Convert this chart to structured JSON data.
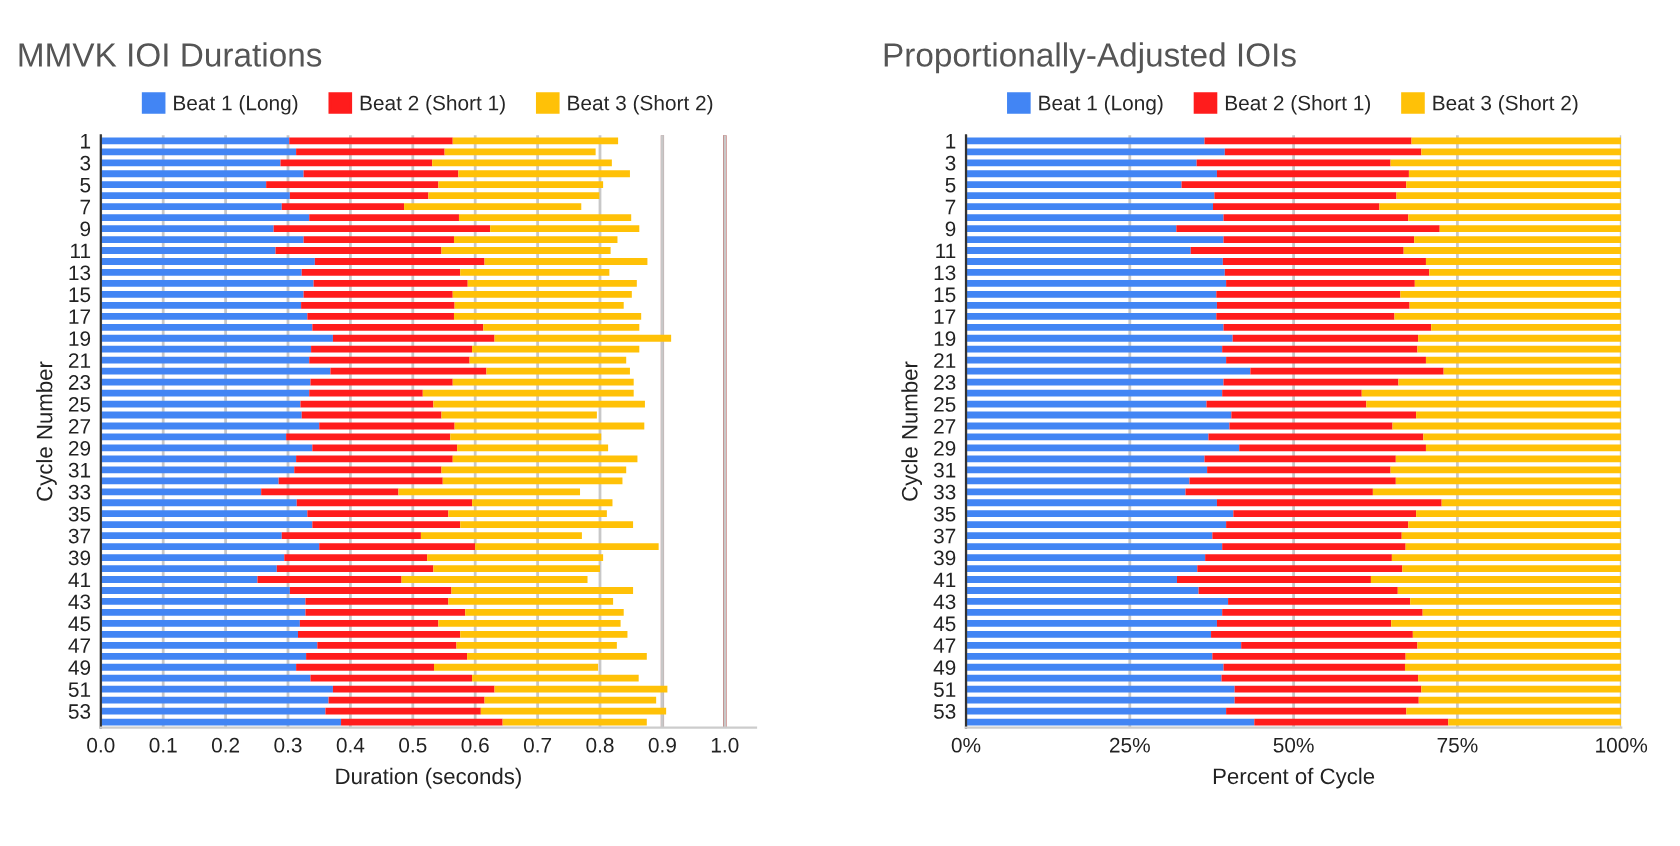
{
  "chart_data": [
    {
      "type": "bar",
      "orientation": "horizontal",
      "stacked": true,
      "title": "MMVK IOI Durations",
      "xlabel": "Duration (seconds)",
      "ylabel": "Cycle Number",
      "legend": "top",
      "grid": "x",
      "categories": [
        "1",
        null,
        "3",
        null,
        "5",
        null,
        "7",
        null,
        "9",
        null,
        "11",
        null,
        "13",
        null,
        "15",
        null,
        "17",
        null,
        "19",
        null,
        "21",
        null,
        "23",
        null,
        "25",
        null,
        "27",
        null,
        "29",
        null,
        "31",
        null,
        "33",
        null,
        "35",
        null,
        "37",
        null,
        "39",
        null,
        "41",
        null,
        "43",
        null,
        "45",
        null,
        "47",
        null,
        "49",
        null,
        "51",
        null,
        "53",
        null
      ],
      "xlim": [
        0,
        1.05
      ],
      "xticks": [
        {
          "value": 0,
          "label": "0.0"
        },
        {
          "value": 0.1,
          "label": "0.1"
        },
        {
          "value": 0.2,
          "label": "0.2"
        },
        {
          "value": 0.3,
          "label": "0.3"
        },
        {
          "value": 0.4,
          "label": "0.4"
        },
        {
          "value": 0.5,
          "label": "0.5"
        },
        {
          "value": 0.6,
          "label": "0.6"
        },
        {
          "value": 0.7,
          "label": "0.7"
        },
        {
          "value": 0.8,
          "label": "0.8"
        },
        {
          "value": 0.9,
          "label": "0.9"
        },
        {
          "value": 1.0,
          "label": "1.0"
        }
      ],
      "ref_lines": [
        {
          "axis": "x",
          "value": 0.9,
          "color": "#b48a8a"
        },
        {
          "axis": "x",
          "value": 1.0,
          "color": "#b3312c"
        }
      ],
      "series": [
        {
          "name": "Beat 1 (Long)",
          "color": "#4285f4",
          "values": [
            0.302,
            0.313,
            0.288,
            0.325,
            0.265,
            0.303,
            0.29,
            0.334,
            0.277,
            0.325,
            0.28,
            0.343,
            0.322,
            0.341,
            0.325,
            0.321,
            0.331,
            0.339,
            0.372,
            0.337,
            0.334,
            0.368,
            0.336,
            0.334,
            0.32,
            0.322,
            0.35,
            0.297,
            0.339,
            0.313,
            0.31,
            0.285,
            0.257,
            0.314,
            0.331,
            0.339,
            0.29,
            0.35,
            0.294,
            0.282,
            0.251,
            0.303,
            0.328,
            0.328,
            0.319,
            0.316,
            0.347,
            0.329,
            0.313,
            0.336,
            0.372,
            0.365,
            0.36,
            0.385
          ]
        },
        {
          "name": "Beat 2 (Short 1)",
          "color": "#ff1c1c",
          "values": [
            0.262,
            0.238,
            0.243,
            0.248,
            0.276,
            0.222,
            0.196,
            0.24,
            0.347,
            0.241,
            0.266,
            0.272,
            0.254,
            0.247,
            0.239,
            0.246,
            0.235,
            0.274,
            0.259,
            0.258,
            0.257,
            0.25,
            0.228,
            0.182,
            0.213,
            0.224,
            0.217,
            0.263,
            0.232,
            0.251,
            0.236,
            0.263,
            0.22,
            0.281,
            0.226,
            0.237,
            0.223,
            0.25,
            0.229,
            0.251,
            0.231,
            0.259,
            0.229,
            0.256,
            0.222,
            0.26,
            0.223,
            0.258,
            0.221,
            0.259,
            0.259,
            0.25,
            0.249,
            0.259
          ]
        },
        {
          "name": "Beat 3 (Short 2)",
          "color": "#ffc107",
          "values": [
            0.265,
            0.242,
            0.288,
            0.275,
            0.264,
            0.274,
            0.284,
            0.276,
            0.239,
            0.262,
            0.271,
            0.261,
            0.239,
            0.271,
            0.287,
            0.271,
            0.3,
            0.25,
            0.283,
            0.268,
            0.251,
            0.23,
            0.29,
            0.338,
            0.339,
            0.249,
            0.304,
            0.242,
            0.242,
            0.296,
            0.296,
            0.288,
            0.291,
            0.225,
            0.254,
            0.277,
            0.258,
            0.294,
            0.282,
            0.267,
            0.298,
            0.291,
            0.264,
            0.254,
            0.292,
            0.268,
            0.257,
            0.288,
            0.263,
            0.267,
            0.277,
            0.275,
            0.297,
            0.231
          ]
        }
      ]
    },
    {
      "type": "bar",
      "orientation": "horizontal",
      "stacked": true,
      "title": "Proportionally-Adjusted IOIs",
      "xlabel": "Percent of Cycle",
      "ylabel": "Cycle Number",
      "legend": "top",
      "grid": "x",
      "categories": [
        "1",
        null,
        "3",
        null,
        "5",
        null,
        "7",
        null,
        "9",
        null,
        "11",
        null,
        "13",
        null,
        "15",
        null,
        "17",
        null,
        "19",
        null,
        "21",
        null,
        "23",
        null,
        "25",
        null,
        "27",
        null,
        "29",
        null,
        "31",
        null,
        "33",
        null,
        "35",
        null,
        "37",
        null,
        "39",
        null,
        "41",
        null,
        "43",
        null,
        "45",
        null,
        "47",
        null,
        "49",
        null,
        "51",
        null,
        "53",
        null
      ],
      "xlim": [
        0,
        100
      ],
      "xticks": [
        {
          "value": 0,
          "label": "0%"
        },
        {
          "value": 25,
          "label": "25%"
        },
        {
          "value": 50,
          "label": "50%"
        },
        {
          "value": 75,
          "label": "75%"
        },
        {
          "value": 100,
          "label": "100%"
        }
      ],
      "series": [
        {
          "name": "Beat 1 (Long)",
          "color": "#4285f4",
          "values": [
            36.4,
            39.5,
            35.2,
            38.3,
            32.9,
            37.9,
            37.7,
            39.3,
            32.1,
            39.3,
            34.3,
            39.2,
            39.5,
            39.7,
            38.2,
            38.3,
            38.2,
            39.3,
            40.7,
            39.1,
            39.7,
            43.4,
            39.3,
            39.1,
            36.7,
            40.5,
            40.2,
            37.0,
            41.7,
            36.4,
            36.8,
            34.1,
            33.5,
            38.3,
            40.8,
            39.7,
            37.6,
            39.1,
            36.5,
            35.3,
            32.2,
            35.5,
            40.0,
            39.1,
            38.3,
            37.4,
            42.0,
            37.6,
            39.3,
            39.0,
            41.0,
            41.0,
            39.7,
            44.0
          ]
        },
        {
          "name": "Beat 2 (Short 1)",
          "color": "#ff1c1c",
          "values": [
            31.6,
            30.0,
            29.6,
            29.3,
            34.3,
            27.8,
            25.4,
            28.2,
            40.2,
            29.1,
            32.5,
            31.0,
            31.2,
            28.8,
            28.1,
            29.4,
            27.2,
            31.7,
            28.3,
            29.8,
            30.5,
            29.5,
            26.7,
            21.3,
            24.4,
            28.2,
            24.9,
            32.8,
            28.5,
            29.2,
            28.0,
            31.5,
            28.6,
            34.3,
            27.9,
            27.8,
            28.9,
            28.0,
            28.5,
            31.3,
            29.6,
            30.4,
            27.8,
            30.6,
            26.6,
            30.8,
            26.9,
            29.5,
            27.7,
            30.0,
            28.5,
            28.1,
            27.5,
            29.6
          ]
        },
        {
          "name": "Beat 3 (Short 2)",
          "color": "#ffc107",
          "values": [
            32.0,
            30.5,
            35.2,
            32.4,
            32.8,
            34.3,
            36.9,
            32.5,
            27.7,
            31.6,
            33.2,
            29.8,
            29.3,
            31.5,
            33.7,
            32.3,
            34.6,
            29.0,
            31.0,
            31.1,
            29.8,
            27.1,
            34.0,
            39.6,
            38.9,
            31.3,
            34.9,
            30.2,
            29.8,
            34.4,
            35.2,
            34.4,
            37.9,
            27.4,
            31.3,
            32.5,
            33.5,
            32.9,
            35.0,
            33.4,
            38.2,
            34.1,
            32.2,
            30.3,
            35.1,
            31.8,
            31.1,
            32.9,
            33.0,
            31.0,
            30.5,
            30.9,
            32.8,
            26.4
          ]
        }
      ]
    }
  ]
}
